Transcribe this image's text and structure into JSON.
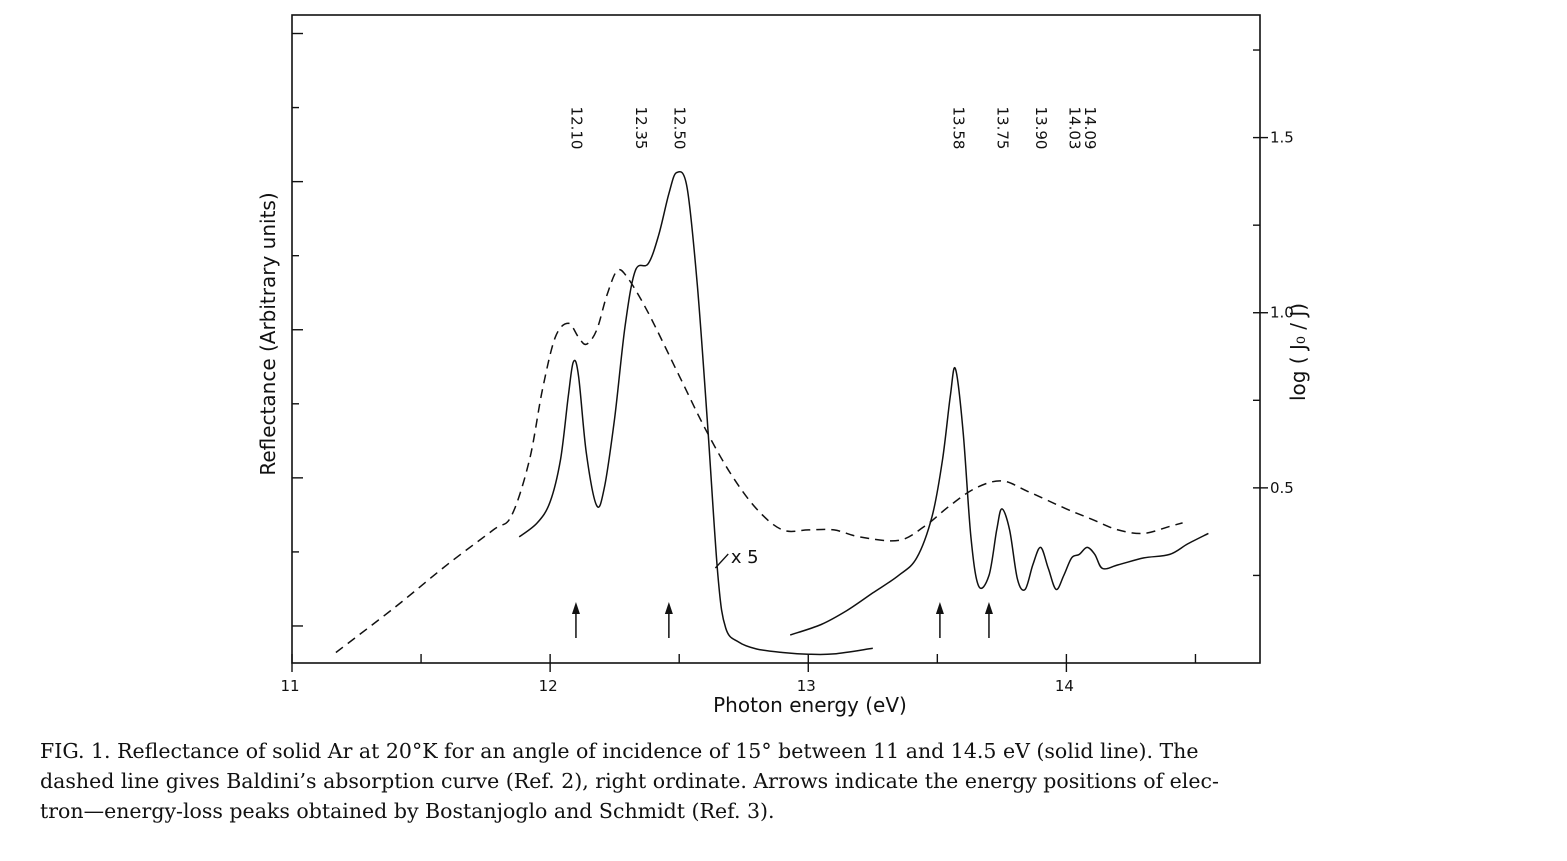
{
  "chart_data": {
    "type": "line",
    "xlabel": "Photon energy (eV)",
    "ylabel": "Reflectance (Arbitrary units)",
    "y2label": "log ( J₀ / J)",
    "xlim": [
      11,
      14.75
    ],
    "x_ticks": [
      "11",
      "12",
      "13",
      "14"
    ],
    "y2_ticks": [
      "0.5",
      "1.0",
      "1.5"
    ],
    "y2lim": [
      0.0,
      1.85
    ],
    "series": [
      {
        "style": "solid",
        "points": [
          [
            11.88,
            0.36
          ],
          [
            11.95,
            0.4
          ],
          [
            12.0,
            0.46
          ],
          [
            12.04,
            0.58
          ],
          [
            12.07,
            0.76
          ],
          [
            12.09,
            0.86
          ],
          [
            12.11,
            0.82
          ],
          [
            12.14,
            0.6
          ],
          [
            12.18,
            0.45
          ],
          [
            12.21,
            0.5
          ],
          [
            12.25,
            0.7
          ],
          [
            12.29,
            0.96
          ],
          [
            12.33,
            1.12
          ],
          [
            12.38,
            1.14
          ],
          [
            12.42,
            1.22
          ],
          [
            12.46,
            1.34
          ],
          [
            12.49,
            1.4
          ],
          [
            12.53,
            1.36
          ],
          [
            12.57,
            1.08
          ],
          [
            12.61,
            0.68
          ],
          [
            12.65,
            0.25
          ],
          [
            12.68,
            0.1
          ],
          [
            12.73,
            0.06
          ],
          [
            12.8,
            0.04
          ],
          [
            12.9,
            0.03
          ],
          [
            13.0,
            0.025
          ],
          [
            13.1,
            0.026
          ],
          [
            13.25,
            0.042
          ]
        ]
      },
      {
        "style": "solid",
        "points": [
          [
            12.93,
            0.08
          ],
          [
            13.05,
            0.11
          ],
          [
            13.15,
            0.15
          ],
          [
            13.25,
            0.2
          ],
          [
            13.35,
            0.25
          ],
          [
            13.42,
            0.3
          ],
          [
            13.48,
            0.42
          ],
          [
            13.52,
            0.58
          ],
          [
            13.55,
            0.76
          ],
          [
            13.57,
            0.84
          ],
          [
            13.6,
            0.66
          ],
          [
            13.63,
            0.36
          ],
          [
            13.66,
            0.22
          ],
          [
            13.7,
            0.25
          ],
          [
            13.73,
            0.38
          ],
          [
            13.75,
            0.44
          ],
          [
            13.78,
            0.38
          ],
          [
            13.81,
            0.24
          ],
          [
            13.84,
            0.21
          ],
          [
            13.87,
            0.28
          ],
          [
            13.9,
            0.33
          ],
          [
            13.93,
            0.27
          ],
          [
            13.96,
            0.21
          ],
          [
            13.99,
            0.25
          ],
          [
            14.02,
            0.3
          ],
          [
            14.05,
            0.31
          ],
          [
            14.08,
            0.33
          ],
          [
            14.11,
            0.31
          ],
          [
            14.14,
            0.27
          ],
          [
            14.2,
            0.28
          ],
          [
            14.3,
            0.3
          ],
          [
            14.4,
            0.31
          ],
          [
            14.47,
            0.34
          ],
          [
            14.55,
            0.37
          ]
        ]
      },
      {
        "style": "dashed",
        "points": [
          [
            11.17,
            0.03
          ],
          [
            11.4,
            0.16
          ],
          [
            11.6,
            0.28
          ],
          [
            11.78,
            0.38
          ],
          [
            11.85,
            0.42
          ],
          [
            11.92,
            0.58
          ],
          [
            11.97,
            0.78
          ],
          [
            12.02,
            0.93
          ],
          [
            12.07,
            0.97
          ],
          [
            12.11,
            0.93
          ],
          [
            12.14,
            0.91
          ],
          [
            12.18,
            0.95
          ],
          [
            12.22,
            1.05
          ],
          [
            12.26,
            1.12
          ],
          [
            12.3,
            1.1
          ],
          [
            12.38,
            1.0
          ],
          [
            12.5,
            0.82
          ],
          [
            12.6,
            0.67
          ],
          [
            12.7,
            0.54
          ],
          [
            12.8,
            0.44
          ],
          [
            12.9,
            0.38
          ],
          [
            13.0,
            0.38
          ],
          [
            13.1,
            0.38
          ],
          [
            13.2,
            0.36
          ],
          [
            13.35,
            0.35
          ],
          [
            13.45,
            0.39
          ],
          [
            13.55,
            0.45
          ],
          [
            13.65,
            0.5
          ],
          [
            13.75,
            0.52
          ],
          [
            13.85,
            0.49
          ],
          [
            14.0,
            0.44
          ],
          [
            14.1,
            0.41
          ],
          [
            14.2,
            0.38
          ],
          [
            14.3,
            0.37
          ],
          [
            14.4,
            0.39
          ],
          [
            14.45,
            0.4
          ]
        ]
      }
    ],
    "peak_labels": [
      {
        "x": 12.1,
        "text": "12.10"
      },
      {
        "x": 12.35,
        "text": "12.35"
      },
      {
        "x": 12.5,
        "text": "12.50"
      },
      {
        "x": 13.58,
        "text": "13.58"
      },
      {
        "x": 13.75,
        "text": "13.75"
      },
      {
        "x": 13.9,
        "text": "13.90"
      },
      {
        "x": 14.03,
        "text": "14.03"
      },
      {
        "x": 14.09,
        "text": "14.09"
      }
    ],
    "arrows_x": [
      12.1,
      12.46,
      13.51,
      13.7
    ],
    "annotation": "x 5"
  },
  "caption": {
    "line1": "FIG. 1.  Reflectance of solid Ar at 20°K for an angle of incidence of 15° between 11 and 14.5 eV (solid line).  The",
    "line2": "dashed line gives Baldini’s absorption curve (Ref. 2),  right ordinate.  Arrows indicate the energy positions of elec-",
    "line3": "tron—energy-loss peaks obtained by Bostanjoglo and Schmidt (Ref. 3)."
  }
}
